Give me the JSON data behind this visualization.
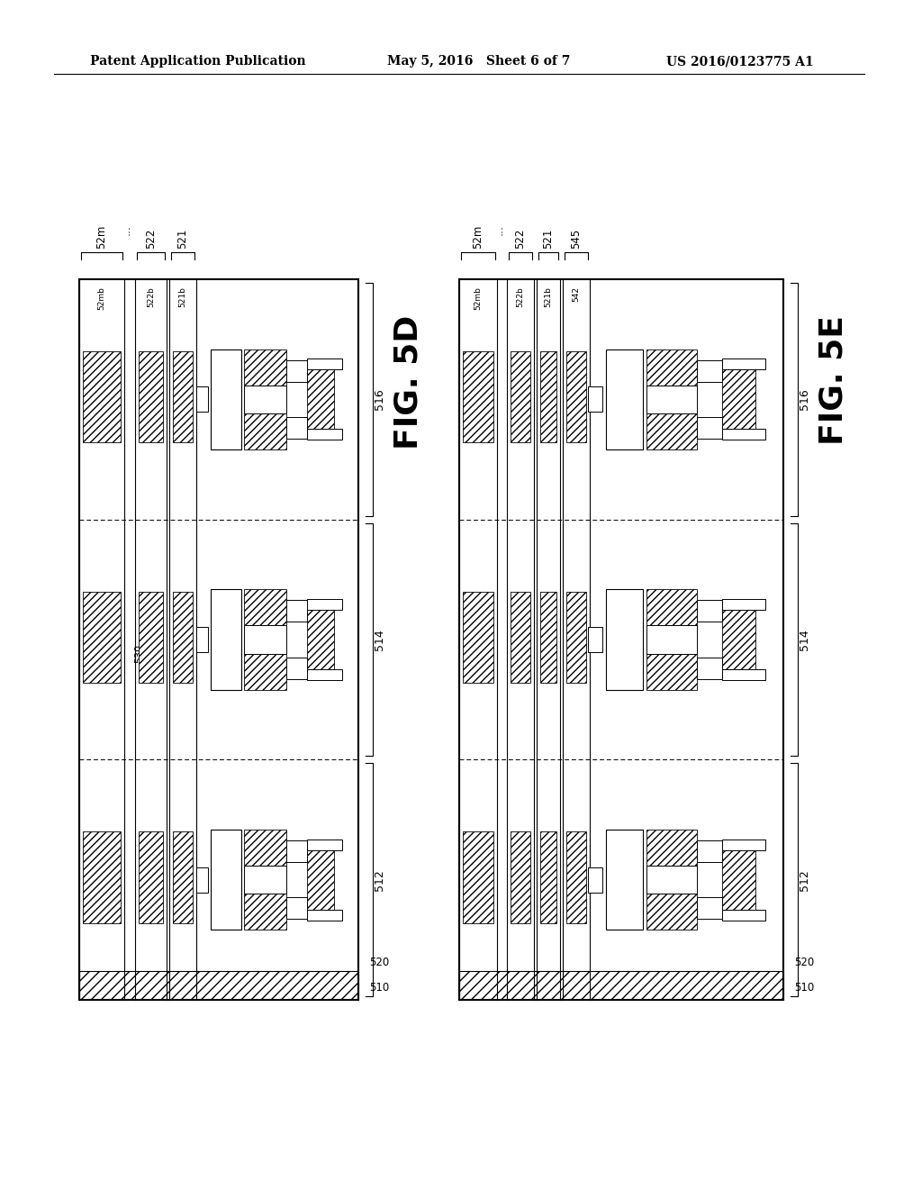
{
  "header_left": "Patent Application Publication",
  "header_mid": "May 5, 2016   Sheet 6 of 7",
  "header_right": "US 2016/0123775 A1",
  "fig5d_label": "FIG. 5D",
  "fig5e_label": "FIG. 5E",
  "background": "#ffffff",
  "line_color": "#000000"
}
